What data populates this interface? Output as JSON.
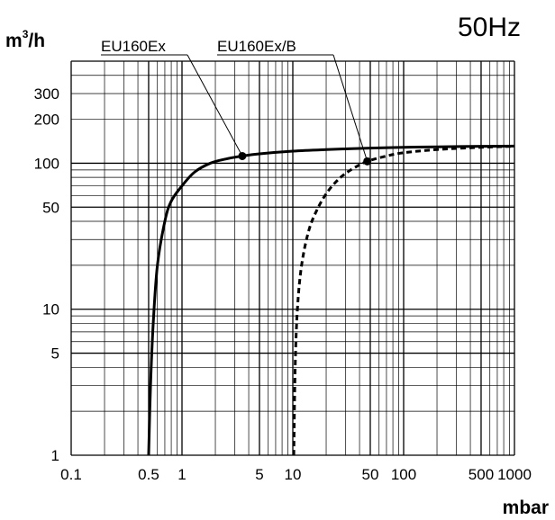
{
  "chart_data": {
    "type": "line",
    "title": "50Hz",
    "xlabel": "mbar",
    "ylabel_base": "m",
    "ylabel_sup": "3",
    "ylabel_tail": "/h",
    "x_scale": "log",
    "y_scale": "log",
    "xlim": [
      0.1,
      1000
    ],
    "ylim": [
      1,
      500
    ],
    "grid": true,
    "x_ticks": [
      {
        "value": 0.1,
        "label": "0.1"
      },
      {
        "value": 0.5,
        "label": "0.5"
      },
      {
        "value": 1,
        "label": "1"
      },
      {
        "value": 5,
        "label": "5"
      },
      {
        "value": 10,
        "label": "10"
      },
      {
        "value": 50,
        "label": "50"
      },
      {
        "value": 100,
        "label": "100"
      },
      {
        "value": 500,
        "label": "500"
      },
      {
        "value": 1000,
        "label": "1000"
      }
    ],
    "y_ticks": [
      {
        "value": 1,
        "label": "1"
      },
      {
        "value": 5,
        "label": "5"
      },
      {
        "value": 10,
        "label": "10"
      },
      {
        "value": 50,
        "label": "50"
      },
      {
        "value": 100,
        "label": "100"
      },
      {
        "value": 200,
        "label": "200"
      },
      {
        "value": 300,
        "label": "300"
      }
    ],
    "series": [
      {
        "name": "EU160Ex",
        "style": "solid",
        "x": [
          0.5,
          0.52,
          0.55,
          0.6,
          0.7,
          0.8,
          1,
          1.3,
          1.8,
          2.5,
          3.5,
          5,
          10,
          20,
          50,
          100,
          200,
          500,
          1000
        ],
        "y": [
          1,
          3,
          8,
          20,
          40,
          55,
          70,
          87,
          100,
          107,
          112,
          116,
          121,
          124,
          127,
          128.5,
          129.5,
          130.5,
          131
        ],
        "marker": {
          "x": 3.5,
          "y": 112
        }
      },
      {
        "name": "EU160Ex/B",
        "style": "dashed",
        "x": [
          10.2,
          10.5,
          11,
          12,
          14,
          17,
          21,
          27,
          35,
          47,
          70,
          100,
          200,
          500,
          1000
        ],
        "y": [
          1,
          4,
          10,
          20,
          35,
          50,
          65,
          80,
          92,
          103,
          112,
          118,
          124,
          128.5,
          130.5
        ],
        "marker": {
          "x": 47,
          "y": 103
        }
      }
    ]
  }
}
